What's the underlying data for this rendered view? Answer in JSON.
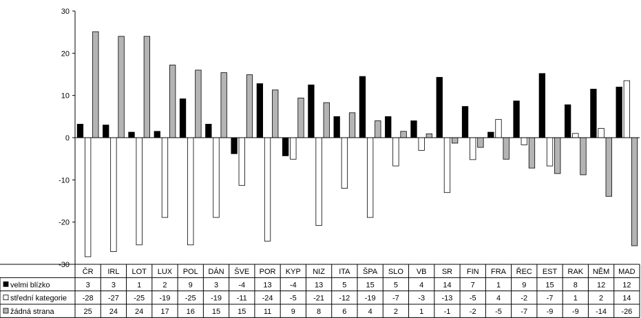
{
  "chart_data": {
    "type": "bar",
    "categories": [
      "ČR",
      "IRL",
      "LOT",
      "LUX",
      "POL",
      "DÁN",
      "ŠVE",
      "POR",
      "KYP",
      "NIZ",
      "ITA",
      "ŠPA",
      "SLO",
      "VB",
      "SR",
      "FIN",
      "FRA",
      "ŘEC",
      "EST",
      "RAK",
      "NĚM",
      "MAD"
    ],
    "series": [
      {
        "name": "velmi blízko",
        "color": "#000000",
        "values": [
          3,
          3,
          1,
          2,
          9,
          3,
          -4,
          13,
          -4,
          13,
          5,
          15,
          5,
          4,
          14,
          7,
          1,
          9,
          15,
          8,
          12,
          12
        ]
      },
      {
        "name": "střední kategorie",
        "color": "#ffffff",
        "values": [
          -28,
          -27,
          -25,
          -19,
          -25,
          -19,
          -11,
          -24,
          -5,
          -21,
          -12,
          -19,
          -7,
          -3,
          -13,
          -5,
          4,
          -2,
          -7,
          1,
          2,
          14
        ]
      },
      {
        "name": "žádná strana",
        "color": "#b4b4b4",
        "values": [
          25,
          24,
          24,
          17,
          16,
          15,
          15,
          11,
          9,
          8,
          6,
          4,
          2,
          1,
          -1,
          -2,
          -5,
          -7,
          -9,
          -9,
          -14,
          -26
        ]
      }
    ],
    "plot_values": [
      [
        3.2,
        3.0,
        1.3,
        1.5,
        9.2,
        3.2,
        -3.8,
        12.8,
        -4.3,
        12.5,
        5.0,
        14.5,
        5.0,
        4.0,
        14.3,
        7.4,
        1.3,
        8.7,
        15.2,
        7.8,
        11.5,
        12.0
      ],
      [
        -28.2,
        -27.0,
        -25.4,
        -18.9,
        -25.4,
        -18.9,
        -11.3,
        -24.5,
        -5.1,
        -20.8,
        -12.0,
        -18.9,
        -6.7,
        -3.0,
        -13.0,
        -5.2,
        4.3,
        -1.7,
        -6.7,
        1.0,
        2.2,
        13.5
      ],
      [
        25.1,
        24.0,
        24.0,
        17.2,
        16.0,
        15.4,
        14.9,
        11.3,
        9.4,
        8.3,
        5.9,
        4.0,
        1.5,
        0.9,
        -1.3,
        -2.3,
        -5.1,
        -7.2,
        -8.5,
        -8.8,
        -13.9,
        -25.6
      ]
    ],
    "ylim": [
      -30,
      30
    ],
    "yticks": [
      -30,
      -20,
      -10,
      0,
      10,
      20,
      30
    ],
    "grid": false,
    "legend": "data table below chart"
  }
}
